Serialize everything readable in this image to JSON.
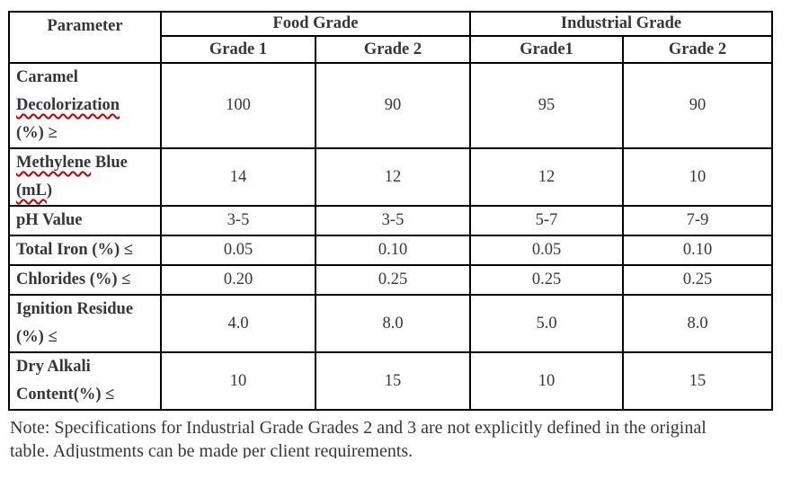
{
  "table": {
    "corner_header": "Parameter",
    "groups": [
      {
        "label": "Food Grade"
      },
      {
        "label": "Industrial Grade"
      }
    ],
    "subheaders": [
      "Grade 1",
      "Grade 2",
      "Grade1",
      "Grade 2"
    ],
    "rows": [
      {
        "name_lines": [
          "Caramel",
          "Decolorization",
          "(%) ≥"
        ],
        "values": [
          "100",
          "90",
          "95",
          "90"
        ]
      },
      {
        "name_line1_wavy": "Methylene",
        "name_line1_rest": " Blue",
        "name_line2_wavy": "(mL",
        "name_line2_rest": ")",
        "values": [
          "14",
          "12",
          "12",
          "10"
        ]
      },
      {
        "name": "pH Value",
        "values": [
          "3-5",
          "3-5",
          "5-7",
          "7-9"
        ]
      },
      {
        "name": "Total Iron (%) ≤",
        "values": [
          "0.05",
          "0.10",
          "0.05",
          "0.10"
        ]
      },
      {
        "name": "Chlorides (%) ≤",
        "values": [
          "0.20",
          "0.25",
          "0.25",
          "0.25"
        ]
      },
      {
        "name_lines": [
          "Ignition Residue",
          "(%) ≤"
        ],
        "values": [
          "4.0",
          "8.0",
          "5.0",
          "8.0"
        ]
      },
      {
        "name_lines": [
          "Dry Alkali",
          "Content(%) ≤"
        ],
        "values": [
          "10",
          "15",
          "10",
          "15"
        ]
      }
    ]
  },
  "note": {
    "line1": "Note: Specifications for Industrial Grade Grades 2 and 3 are not explicitly defined in the original",
    "line2": "table. Adjustments can be made per client requirements."
  },
  "colors": {
    "border": "#000000",
    "text": "#363636",
    "spellcheck_underline": "#c00000"
  }
}
